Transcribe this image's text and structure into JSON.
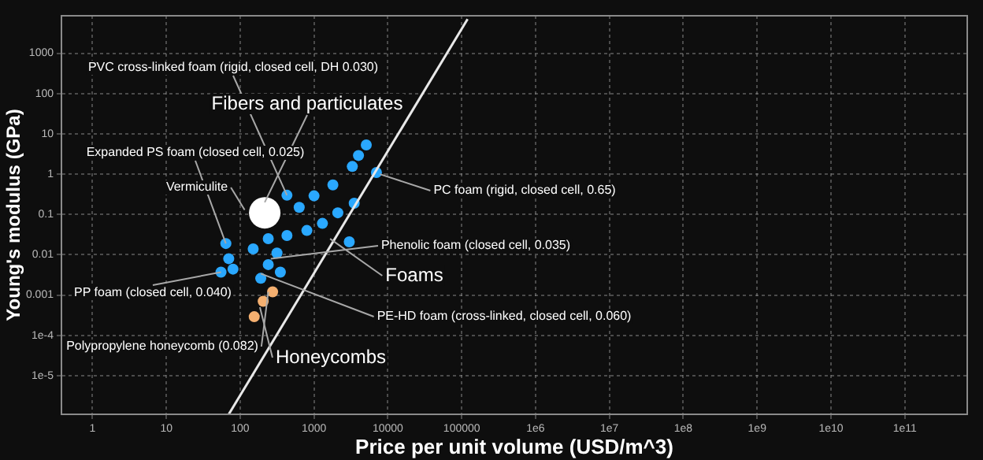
{
  "chart_data": {
    "type": "scatter",
    "xlabel": "Price per unit volume (USD/m^3)",
    "ylabel": "Young's modulus (GPa)",
    "log": "xy",
    "grid": true,
    "legend": false,
    "marker": "circle",
    "xlim": [
      0.38,
      700000000000
    ],
    "ylim": [
      1.1e-06,
      8500
    ],
    "xticks": [
      1,
      10,
      100,
      1000,
      10000,
      100000,
      {
        "value": 1000000,
        "label": "1e6"
      },
      {
        "value": 10000000,
        "label": "1e7"
      },
      {
        "value": 100000000,
        "label": "1e8"
      },
      {
        "value": 1000000000,
        "label": "1e9"
      },
      {
        "value": 10000000000,
        "label": "1e10"
      },
      {
        "value": 100000000000,
        "label": "1e11"
      }
    ],
    "yticks": [
      {
        "value": 1e-05,
        "label": "1e-5"
      },
      {
        "value": 0.0001,
        "label": "1e-4"
      },
      0.001,
      0.01,
      0.1,
      1,
      10,
      100,
      1000
    ],
    "series": [
      {
        "type": "line",
        "color": "#e8e8e8",
        "line_style": "solid",
        "marker": "none",
        "x": [
          70,
          120000
        ],
        "values": [
          1.1e-06,
          7000
        ]
      },
      {
        "color": "#2aa8ff",
        "x": [
          5100,
          4000,
          3300,
          7000,
          1800,
          1000,
          630,
          3500,
          2100,
          1300,
          800,
          430,
          240,
          3000,
          150,
          70,
          80,
          240,
          315,
          55,
          190,
          350,
          430,
          64
        ],
        "values": [
          5.3,
          2.9,
          1.55,
          1.1,
          0.54,
          0.29,
          0.15,
          0.19,
          0.11,
          0.06,
          0.04,
          0.03,
          0.025,
          0.021,
          0.014,
          0.008,
          0.0044,
          0.0057,
          0.011,
          0.0037,
          0.0026,
          0.0037,
          0.3,
          0.019
        ]
      },
      {
        "color": "#ffffff",
        "x": [
          215
        ],
        "values": [
          0.11
        ]
      },
      {
        "color": "#f5b070",
        "x": [
          275,
          205,
          155
        ],
        "values": [
          0.0012,
          0.0007,
          0.00029
        ]
      }
    ],
    "annotations": [
      {
        "text": "PVC cross-linked foam (rigid, closed cell, DH 0.030)",
        "x": 430,
        "y": 0.3
      },
      {
        "text": "Fibers and particulates",
        "x": 215,
        "y": 0.2
      },
      {
        "text": "Expanded PS foam (closed cell, 0.025)",
        "x": 64,
        "y": 0.019
      },
      {
        "text": "Vermiculite",
        "x": 115,
        "y": 0.13
      },
      {
        "text": "PC foam (rigid, closed cell, 0.65)",
        "x": 7800,
        "y": 1
      },
      {
        "text": "Phenolic foam (closed cell, 0.035)",
        "x": 260,
        "y": 0.008
      },
      {
        "text": "Foams",
        "x": 1650,
        "y": 0.025
      },
      {
        "text": "PP foam (closed cell, 0.040)",
        "x": 55,
        "y": 0.0037
      },
      {
        "text": "PE-HD foam (cross-linked, closed cell, 0.060)",
        "x": 190,
        "y": 0.0034
      },
      {
        "text": "Polypropylene honeycomb (0.082)",
        "x": 240,
        "y": 0.0012
      },
      {
        "text": "Honeycombs",
        "x": 185,
        "y": 0.0005
      }
    ]
  }
}
